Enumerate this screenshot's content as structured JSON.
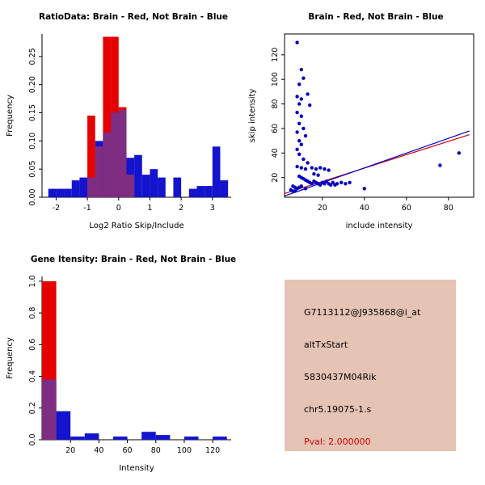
{
  "page": {
    "background": "#ffffff"
  },
  "colors": {
    "red": "#E60000",
    "blue": "#1414CE",
    "overlap": "#7D2E82",
    "scatter_point": "#0000C0",
    "line_red": "#D00000",
    "line_blue": "#0000D0",
    "axis": "#000000",
    "info_bg": "#E5C4B5",
    "pval": "#D40000"
  },
  "info_box": {
    "lines": [
      "G7113112@J935868@i_at",
      "altTxStart",
      "5830437M04Rik",
      "chr5.19075-1.s"
    ],
    "pval": "Pval: 2.000000"
  },
  "chart_data": [
    {
      "type": "bar",
      "title": "RatioData: Brain - Red, Not Brain - Blue",
      "xlabel": "Log2 Ratio Skip/Include",
      "ylabel": "Frequency",
      "xlim": [
        -2.45,
        3.6
      ],
      "ylim": [
        0,
        0.29
      ],
      "xticks": [
        -2,
        -1,
        0,
        1,
        2,
        3
      ],
      "yticks": [
        0,
        0.05,
        0.1,
        0.15,
        0.2,
        0.25
      ],
      "ytick_labels": [
        "0.00",
        "0.05",
        "0.10",
        "0.15",
        "0.20",
        "0.25"
      ],
      "bin_width": 0.25,
      "bins_left": [
        -2.25,
        -2,
        -1.75,
        -1.5,
        -1.25,
        -1,
        -0.75,
        -0.5,
        -0.25,
        0,
        0.25,
        0.5,
        0.75,
        1,
        1.25,
        1.5,
        1.75,
        2,
        2.25,
        2.5,
        2.75,
        3,
        3.25
      ],
      "series": [
        {
          "name": "Not Brain",
          "color_key": "blue",
          "values": [
            0.015,
            0.015,
            0.015,
            0.03,
            0.035,
            0.035,
            0.1,
            0.115,
            0.15,
            0.155,
            0.07,
            0.075,
            0.04,
            0.05,
            0.035,
            0,
            0.035,
            0,
            0.015,
            0.02,
            0.02,
            0.09,
            0.03
          ]
        },
        {
          "name": "Brain",
          "color_key": "red",
          "values": [
            0,
            0,
            0,
            0,
            0,
            0.145,
            0.09,
            0.285,
            0.285,
            0.16,
            0.04,
            0,
            0,
            0,
            0,
            0,
            0,
            0,
            0,
            0,
            0,
            0,
            0
          ]
        }
      ],
      "box": false,
      "grid": false
    },
    {
      "type": "scatter",
      "title": "Brain - Red, Not Brain - Blue",
      "xlabel": "include intensity",
      "ylabel": "skip intensity",
      "xlim": [
        2,
        92
      ],
      "ylim": [
        4,
        137
      ],
      "xticks": [
        20,
        40,
        60,
        80
      ],
      "yticks": [
        20,
        40,
        60,
        80,
        100,
        120
      ],
      "points": [
        [
          8,
          130
        ],
        [
          10,
          108
        ],
        [
          11,
          101
        ],
        [
          9,
          96
        ],
        [
          13,
          88
        ],
        [
          8,
          86
        ],
        [
          10,
          84
        ],
        [
          9,
          80
        ],
        [
          14,
          79
        ],
        [
          8,
          73
        ],
        [
          10,
          70
        ],
        [
          9,
          64
        ],
        [
          11,
          60
        ],
        [
          8,
          57
        ],
        [
          12,
          54
        ],
        [
          9,
          50
        ],
        [
          10,
          47
        ],
        [
          8,
          43
        ],
        [
          9,
          39
        ],
        [
          11,
          35
        ],
        [
          13,
          32
        ],
        [
          8,
          29
        ],
        [
          10,
          28
        ],
        [
          12,
          27
        ],
        [
          15,
          28
        ],
        [
          17,
          27
        ],
        [
          19,
          28
        ],
        [
          21,
          27
        ],
        [
          23,
          26
        ],
        [
          16,
          23
        ],
        [
          18,
          22
        ],
        [
          9,
          21
        ],
        [
          10,
          20
        ],
        [
          11,
          19
        ],
        [
          12,
          18
        ],
        [
          13,
          17
        ],
        [
          14,
          16
        ],
        [
          15,
          15
        ],
        [
          16,
          17
        ],
        [
          17,
          16
        ],
        [
          18,
          15
        ],
        [
          19,
          14
        ],
        [
          20,
          16
        ],
        [
          21,
          15
        ],
        [
          22,
          17
        ],
        [
          23,
          15
        ],
        [
          24,
          14
        ],
        [
          25,
          16
        ],
        [
          26,
          14
        ],
        [
          27,
          15
        ],
        [
          29,
          16
        ],
        [
          31,
          15
        ],
        [
          33,
          16
        ],
        [
          40,
          11
        ],
        [
          76,
          30
        ],
        [
          85,
          40
        ],
        [
          6,
          13
        ],
        [
          7,
          12
        ],
        [
          8,
          11
        ],
        [
          9,
          12
        ],
        [
          10,
          13
        ],
        [
          12,
          11
        ],
        [
          5,
          10
        ],
        [
          6,
          9
        ],
        [
          7,
          9
        ]
      ],
      "lines": [
        {
          "color_key": "line_red",
          "x1": 2,
          "y1": 7,
          "x2": 90,
          "y2": 55
        },
        {
          "color_key": "line_blue",
          "x1": 2,
          "y1": 5,
          "x2": 90,
          "y2": 58
        }
      ],
      "box": true,
      "grid": false
    },
    {
      "type": "bar",
      "title": "Gene Itensity: Brain - Red, Not Brain - Blue",
      "xlabel": "Intensity",
      "ylabel": "Frequency",
      "xlim": [
        0,
        133
      ],
      "ylim": [
        0,
        1.03
      ],
      "xticks": [
        20,
        40,
        60,
        80,
        100,
        120
      ],
      "yticks": [
        0,
        0.2,
        0.4,
        0.6,
        0.8,
        1
      ],
      "ytick_labels": [
        "0.0",
        "0.2",
        "0.4",
        "0.6",
        "0.8",
        "1.0"
      ],
      "bin_width": 10,
      "bins_left": [
        0,
        10,
        20,
        30,
        40,
        50,
        60,
        70,
        80,
        90,
        100,
        110,
        120
      ],
      "series": [
        {
          "name": "Not Brain",
          "color_key": "blue",
          "values": [
            0.38,
            0.18,
            0.02,
            0.04,
            0,
            0.02,
            0,
            0.05,
            0.03,
            0,
            0.02,
            0,
            0.02
          ]
        },
        {
          "name": "Brain",
          "color_key": "red",
          "values": [
            1,
            0,
            0,
            0,
            0,
            0,
            0,
            0,
            0,
            0,
            0,
            0,
            0
          ]
        }
      ],
      "box": false,
      "grid": false
    }
  ]
}
